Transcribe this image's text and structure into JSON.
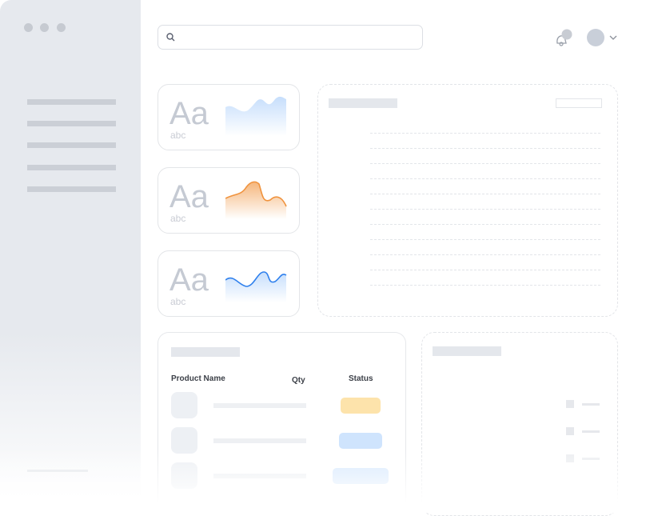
{
  "window": {
    "controls": [
      "close",
      "minimize",
      "maximize"
    ]
  },
  "search": {
    "placeholder": "",
    "icon": "search-icon"
  },
  "header": {
    "notification_icon": "bell-icon",
    "avatar": "avatar",
    "chevron": "chevron-down-icon"
  },
  "cards": [
    {
      "title": "Aa",
      "subtitle": "abc",
      "color": "#bcd8fb",
      "style": "area"
    },
    {
      "title": "Aa",
      "subtitle": "abc",
      "color": "#f0933e",
      "style": "area-line"
    },
    {
      "title": "Aa",
      "subtitle": "abc",
      "color": "#2f80ed",
      "style": "area-line"
    }
  ],
  "table": {
    "headers": {
      "product": "Product Name",
      "qty": "Qty",
      "status": "Status"
    },
    "status_colors": [
      "#fde3ab",
      "#cfe4fd",
      "#d6e8fd"
    ]
  }
}
